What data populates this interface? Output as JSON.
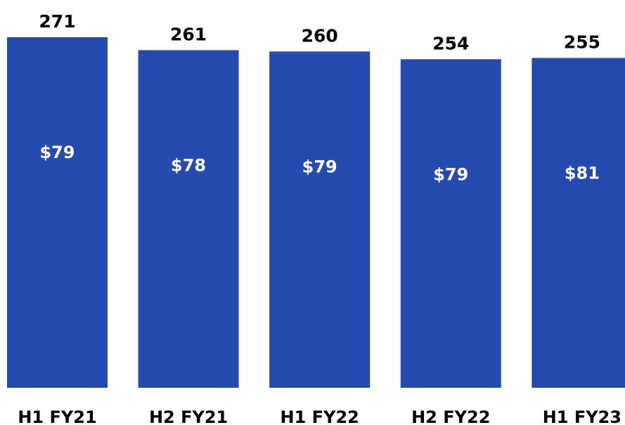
{
  "chart_data": {
    "type": "bar",
    "categories": [
      "H1 FY21",
      "H2 FY21",
      "H1 FY22",
      "H2 FY22",
      "H1 FY23"
    ],
    "values": [
      271,
      261,
      260,
      254,
      255
    ],
    "value_labels": [
      "271",
      "261",
      "260",
      "254",
      "255"
    ],
    "inner_labels": [
      "$79",
      "$78",
      "$79",
      "$79",
      "$81"
    ],
    "title": "",
    "xlabel": "",
    "ylabel": "",
    "ylim": [
      0,
      271
    ],
    "grid": false,
    "legend": "none",
    "colors": {
      "bar": "#254BB1",
      "bar_text": "#ffffff",
      "label_text": "#000000"
    }
  }
}
